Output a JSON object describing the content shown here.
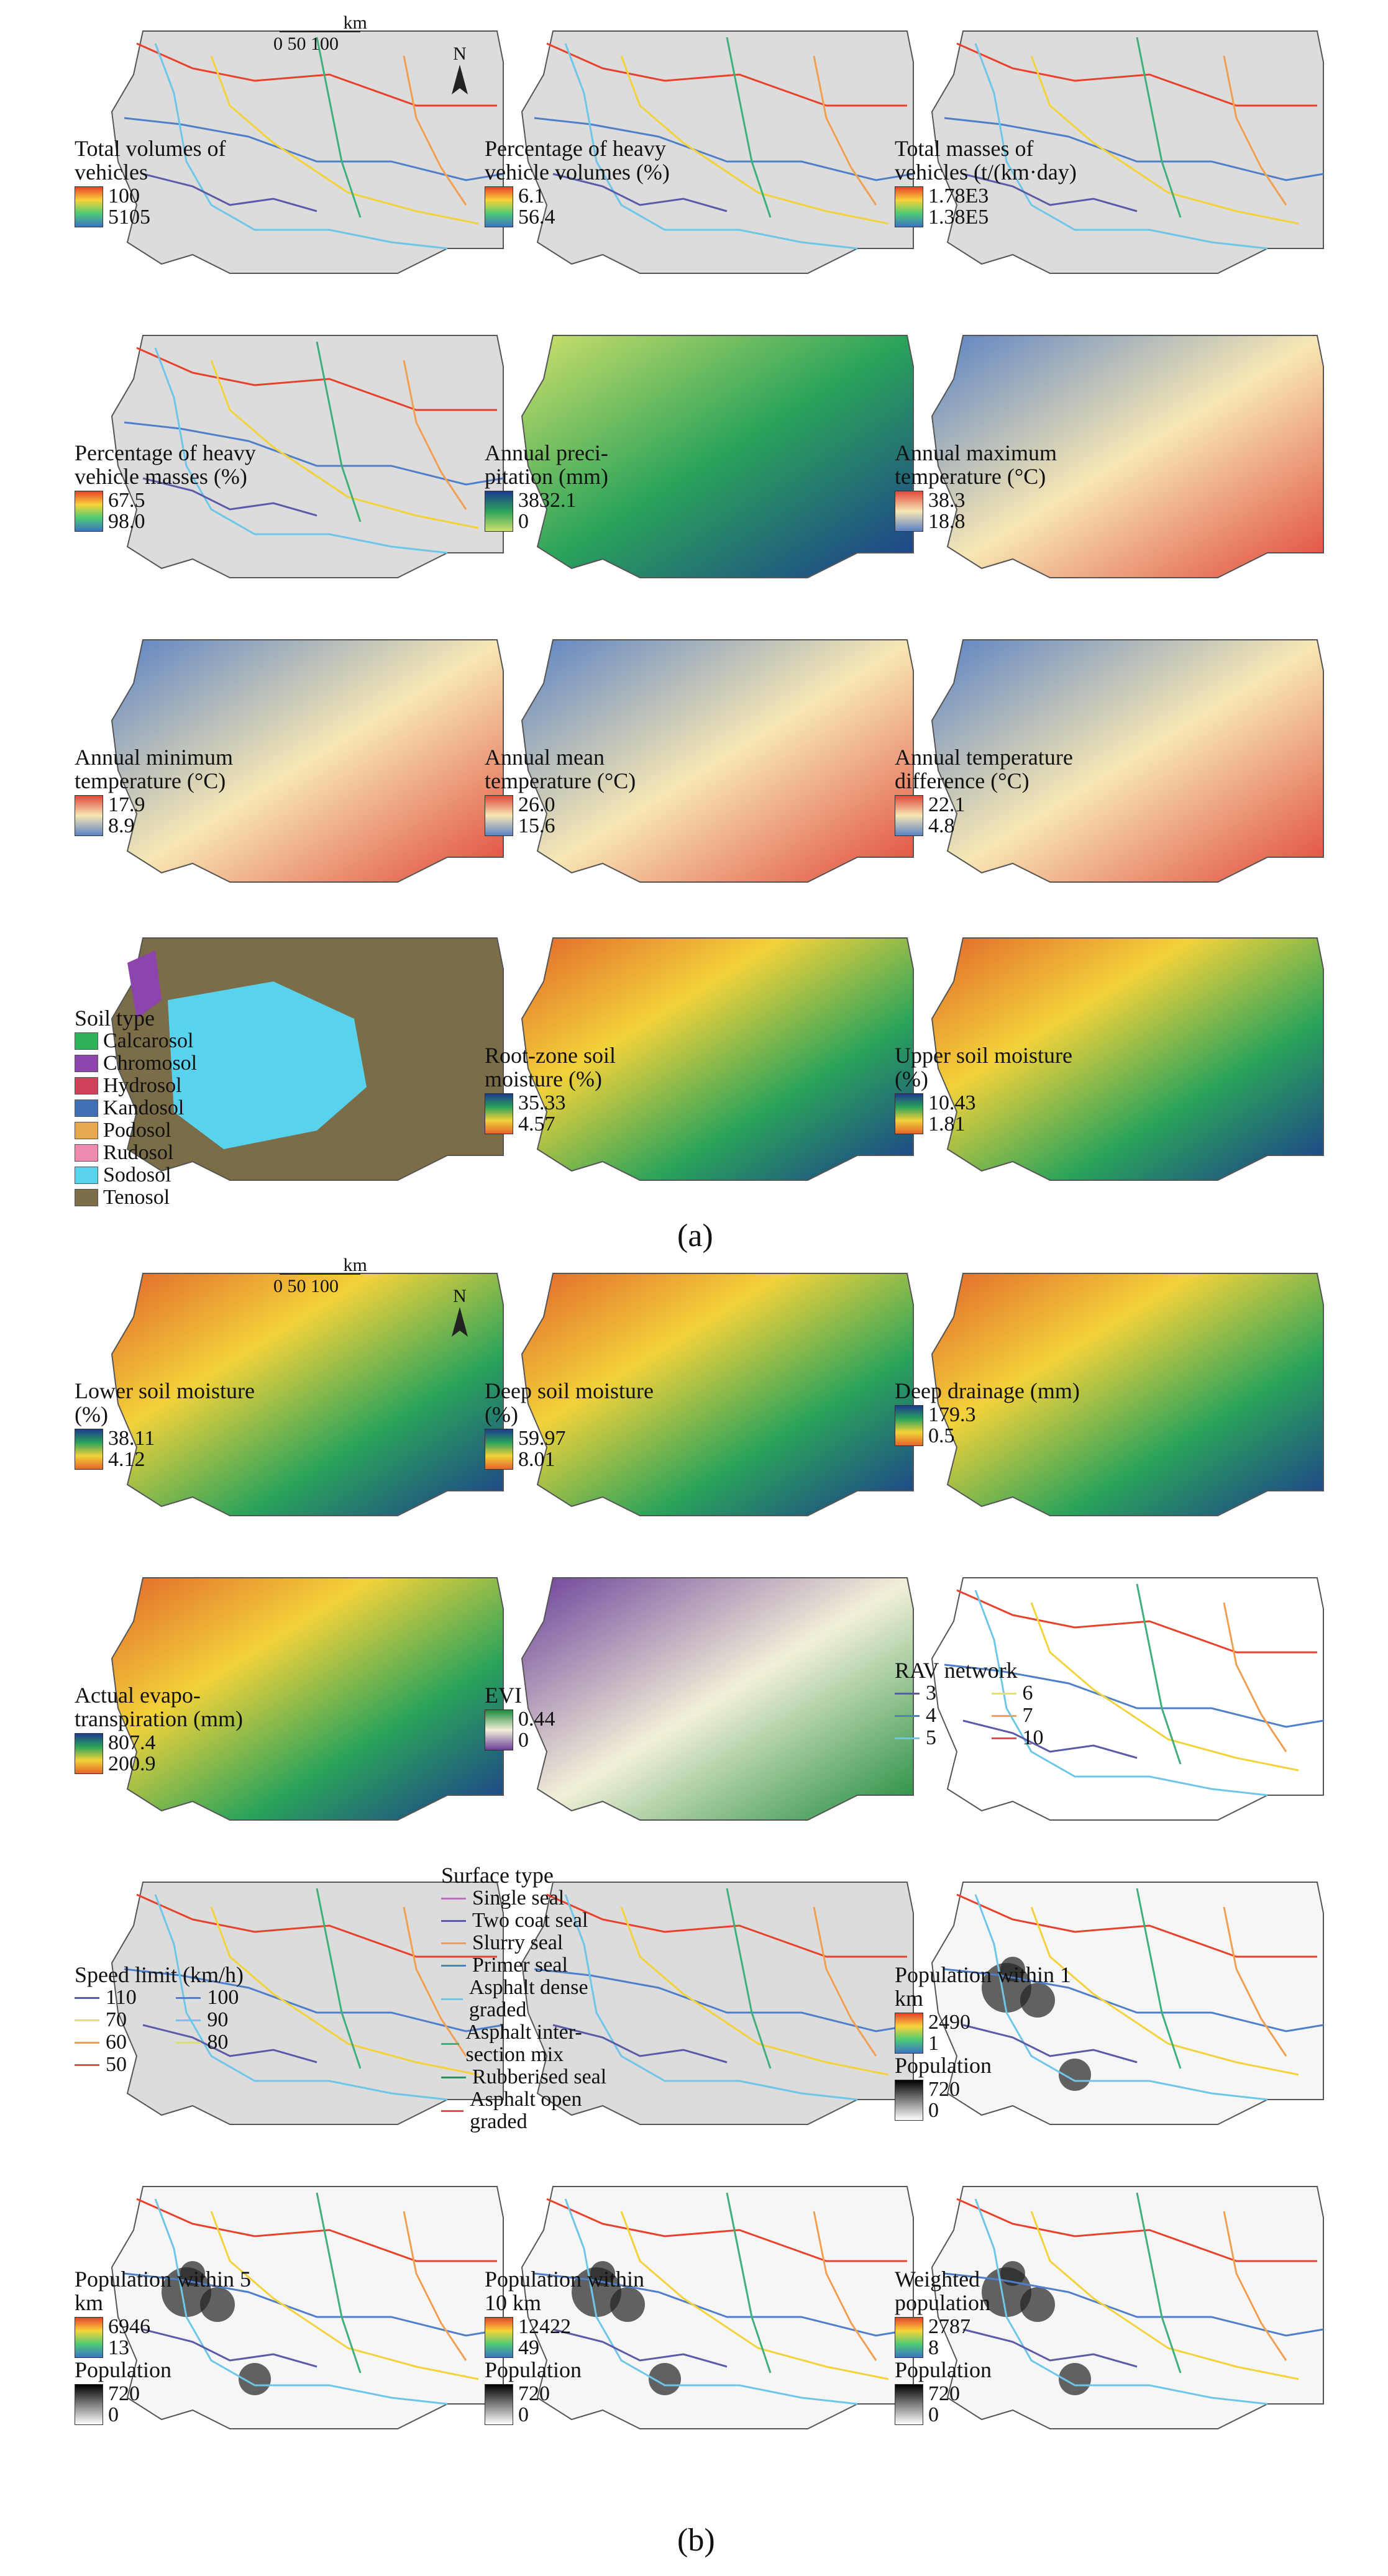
{
  "figure_labels": {
    "a": "(a)",
    "b": "(b)"
  },
  "north_arrow": "N",
  "scale_bar": {
    "ticks": [
      "0",
      "50",
      "100"
    ],
    "unit": "km"
  },
  "panels": [
    {
      "id": "total-volumes",
      "title": "Total volumes of vehicles",
      "type": "roads",
      "legend": {
        "kind": "gradient",
        "high": "100",
        "low": "5105",
        "colors": [
          "#e8412c",
          "#f8d43a",
          "#4ecb73",
          "#3b73c8"
        ]
      }
    },
    {
      "id": "heavy-vehicle-volumes",
      "title": "Percentage of heavy vehicle volumes (%)",
      "type": "roads",
      "legend": {
        "kind": "gradient",
        "high": "6.1",
        "low": "56.4",
        "colors": [
          "#e8412c",
          "#f8d43a",
          "#4ecb73",
          "#3b73c8"
        ]
      }
    },
    {
      "id": "total-masses",
      "title": "Total masses of vehicles (t/(km·day)",
      "type": "roads",
      "legend": {
        "kind": "gradient",
        "high": "1.78E3",
        "low": "1.38E5",
        "colors": [
          "#e8412c",
          "#f8d43a",
          "#4ecb73",
          "#3b73c8"
        ]
      }
    },
    {
      "id": "heavy-vehicle-masses",
      "title": "Percentage of heavy vehicle masses (%)",
      "type": "roads",
      "legend": {
        "kind": "gradient",
        "high": "67.5",
        "low": "98.0",
        "colors": [
          "#e8412c",
          "#f8d43a",
          "#4ecb73",
          "#3b73c8"
        ]
      }
    },
    {
      "id": "annual-precipitation",
      "title": "Annual preci- pitation (mm)",
      "type": "raster",
      "legend": {
        "kind": "gradient",
        "high": "3832.1",
        "low": "0",
        "colors": [
          "#1d3b8f",
          "#2aa35a",
          "#cfe06a"
        ]
      }
    },
    {
      "id": "annual-max-temp",
      "title": "Annual maximum temperature (°C)",
      "type": "raster",
      "legend": {
        "kind": "gradient",
        "high": "38.3",
        "low": "18.8",
        "colors": [
          "#e0483a",
          "#f7e7b4",
          "#5b82c4"
        ]
      }
    },
    {
      "id": "annual-min-temp",
      "title": "Annual minimum temperature (°C)",
      "type": "raster",
      "legend": {
        "kind": "gradient",
        "high": "17.9",
        "low": "8.9",
        "colors": [
          "#e0483a",
          "#f7e7b4",
          "#5b82c4"
        ]
      }
    },
    {
      "id": "annual-mean-temp",
      "title": "Annual mean temperature (°C)",
      "type": "raster",
      "legend": {
        "kind": "gradient",
        "high": "26.0",
        "low": "15.6",
        "colors": [
          "#e0483a",
          "#f7e7b4",
          "#5b82c4"
        ]
      }
    },
    {
      "id": "annual-temp-difference",
      "title": "Annual temperature difference (°C)",
      "type": "raster",
      "legend": {
        "kind": "gradient",
        "high": "22.1",
        "low": "4.8",
        "colors": [
          "#e0483a",
          "#f7e7b4",
          "#5b82c4"
        ]
      }
    },
    {
      "id": "soil-type",
      "title": "Soil type",
      "type": "categorical",
      "legend": {
        "kind": "categories",
        "items": [
          {
            "label": "Calcarosol",
            "color": "#2fb35a"
          },
          {
            "label": "Chromosol",
            "color": "#8e44ad"
          },
          {
            "label": "Hydrosol",
            "color": "#d2415a"
          },
          {
            "label": "Kandosol",
            "color": "#3f6fb5"
          },
          {
            "label": "Podosol",
            "color": "#e5a84f"
          },
          {
            "label": "Rudosol",
            "color": "#f08ab0"
          },
          {
            "label": "Sodosol",
            "color": "#59d2ee"
          },
          {
            "label": "Tenosol",
            "color": "#7b6d48"
          }
        ]
      }
    },
    {
      "id": "root-zone-soil-moisture",
      "title": "Root-zone soil moisture (%)",
      "type": "raster",
      "legend": {
        "kind": "gradient",
        "high": "35.33",
        "low": "4.57",
        "colors": [
          "#1d3b8f",
          "#2aa35a",
          "#f3d23a",
          "#e2672b"
        ]
      }
    },
    {
      "id": "upper-soil-moisture",
      "title": "Upper soil moisture (%)",
      "type": "raster",
      "legend": {
        "kind": "gradient",
        "high": "10.43",
        "low": "1.81",
        "colors": [
          "#1d3b8f",
          "#2aa35a",
          "#f3d23a",
          "#e2672b"
        ]
      }
    },
    {
      "id": "lower-soil-moisture",
      "title": "Lower soil moisture (%)",
      "type": "raster",
      "legend": {
        "kind": "gradient",
        "high": "38.11",
        "low": "4.12",
        "colors": [
          "#1d3b8f",
          "#2aa35a",
          "#f3d23a",
          "#e2672b"
        ]
      }
    },
    {
      "id": "deep-soil-moisture",
      "title": "Deep soil moisture (%)",
      "type": "raster",
      "legend": {
        "kind": "gradient",
        "high": "59.97",
        "low": "8.01",
        "colors": [
          "#1d3b8f",
          "#2aa35a",
          "#f3d23a",
          "#e2672b"
        ]
      }
    },
    {
      "id": "deep-drainage",
      "title": "Deep drainage (mm)",
      "type": "raster",
      "legend": {
        "kind": "gradient",
        "high": "179.3",
        "low": "0.5",
        "colors": [
          "#1d3b8f",
          "#2aa35a",
          "#f3d23a",
          "#e2672b"
        ]
      }
    },
    {
      "id": "actual-evapotranspiration",
      "title": "Actual evapo- transpiration (mm)",
      "type": "raster",
      "legend": {
        "kind": "gradient",
        "high": "807.4",
        "low": "200.9",
        "colors": [
          "#1d3b8f",
          "#2aa35a",
          "#f3d23a",
          "#e2672b"
        ]
      }
    },
    {
      "id": "evi",
      "title": "EVI",
      "type": "raster",
      "legend": {
        "kind": "gradient",
        "high": "0.44",
        "low": "0",
        "colors": [
          "#1c8a3a",
          "#f2f0d8",
          "#6b3f9a"
        ]
      }
    },
    {
      "id": "rav-network",
      "title": "RAV network",
      "type": "lines",
      "legend": {
        "kind": "lines",
        "items": [
          {
            "label": "3",
            "color": "#5a5aa8"
          },
          {
            "label": "6",
            "color": "#e8e070"
          },
          {
            "label": "4",
            "color": "#4f7fc8"
          },
          {
            "label": "7",
            "color": "#f0a050"
          },
          {
            "label": "5",
            "color": "#6ec6e8"
          },
          {
            "label": "10",
            "color": "#e05050"
          }
        ]
      }
    },
    {
      "id": "speed-limit",
      "title": "Speed limit (km/h)",
      "type": "roads",
      "legend": {
        "kind": "lines",
        "items": [
          {
            "label": "110",
            "color": "#5a5aa8"
          },
          {
            "label": "100",
            "color": "#4f7fc8"
          },
          {
            "label": "70",
            "color": "#e8e070"
          },
          {
            "label": "90",
            "color": "#6ec6e8"
          },
          {
            "label": "60",
            "color": "#f0a050"
          },
          {
            "label": "80",
            "color": "#d8e070"
          },
          {
            "label": "50",
            "color": "#e05050"
          }
        ]
      }
    },
    {
      "id": "surface-type",
      "title": "Surface type",
      "type": "roads",
      "legend": {
        "kind": "lines",
        "items": [
          {
            "label": "Single seal",
            "color": "#c070c0"
          },
          {
            "label": "Two coat seal",
            "color": "#5a5aa8"
          },
          {
            "label": "Slurry seal",
            "color": "#e0a070"
          },
          {
            "label": "Primer seal",
            "color": "#4f7fc8"
          },
          {
            "label": "Asphalt dense graded",
            "color": "#6ec6e8"
          },
          {
            "label": "Asphalt inter- section mix",
            "color": "#3fb07a"
          },
          {
            "label": "Rubberised seal",
            "color": "#2f9060"
          },
          {
            "label": "Asphalt open graded",
            "color": "#e05050"
          }
        ]
      }
    },
    {
      "id": "population-1km",
      "title": "Population within 1 km",
      "type": "population",
      "legend": {
        "kind": "dual",
        "high": "2490",
        "low": "1",
        "colors": [
          "#e8412c",
          "#f8d43a",
          "#4ecb73",
          "#3b73c8"
        ],
        "gray_title": "Population",
        "gray_high": "720",
        "gray_low": "0"
      }
    },
    {
      "id": "population-5km",
      "title": "Population within 5 km",
      "type": "population",
      "legend": {
        "kind": "dual",
        "high": "6946",
        "low": "13",
        "colors": [
          "#e8412c",
          "#f8d43a",
          "#4ecb73",
          "#3b73c8"
        ],
        "gray_title": "Population",
        "gray_high": "720",
        "gray_low": "0"
      }
    },
    {
      "id": "population-10km",
      "title": "Population within 10 km",
      "type": "population",
      "legend": {
        "kind": "dual",
        "high": "12422",
        "low": "49",
        "colors": [
          "#e8412c",
          "#f8d43a",
          "#4ecb73",
          "#3b73c8"
        ],
        "gray_title": "Population",
        "gray_high": "720",
        "gray_low": "0"
      }
    },
    {
      "id": "weighted-population",
      "title": "Weighted population",
      "type": "population",
      "legend": {
        "kind": "dual",
        "high": "2787",
        "low": "8",
        "colors": [
          "#e8412c",
          "#f8d43a",
          "#4ecb73",
          "#3b73c8"
        ],
        "gray_title": "Population",
        "gray_high": "720",
        "gray_low": "0"
      }
    }
  ]
}
